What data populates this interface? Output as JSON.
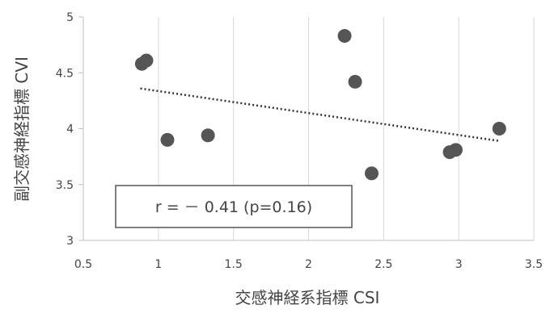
{
  "chart_data": {
    "type": "scatter",
    "xlabel": "交感神経系指標 CSI",
    "ylabel": "副交感神経指標 CVI",
    "xlim": [
      0.5,
      3.5
    ],
    "ylim": [
      3,
      5
    ],
    "x_ticks": [
      "0.5",
      "1",
      "1.5",
      "2",
      "2.5",
      "3",
      "3.5"
    ],
    "y_ticks": [
      "3",
      "3.5",
      "4",
      "4.5",
      "5"
    ],
    "grid": "vertical",
    "points": [
      {
        "x": 0.89,
        "y": 4.58
      },
      {
        "x": 0.92,
        "y": 4.61
      },
      {
        "x": 1.06,
        "y": 3.9
      },
      {
        "x": 1.33,
        "y": 3.94
      },
      {
        "x": 2.24,
        "y": 4.83
      },
      {
        "x": 2.31,
        "y": 4.42
      },
      {
        "x": 2.42,
        "y": 3.6
      },
      {
        "x": 2.94,
        "y": 3.79
      },
      {
        "x": 2.98,
        "y": 3.81
      },
      {
        "x": 3.27,
        "y": 4.0
      }
    ],
    "trendline": {
      "style": "dotted",
      "x": [
        0.88,
        3.27
      ],
      "y": [
        4.36,
        3.89
      ]
    },
    "annotation": "r = － 0.41 (p=0.16)",
    "colors": {
      "points": "#555555",
      "trendline": "#333333",
      "grid": "#d9d9d9",
      "axis": "#bfbfbf"
    }
  }
}
